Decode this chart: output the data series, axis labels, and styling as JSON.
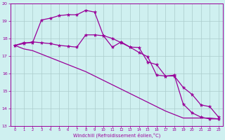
{
  "xlabel": "Windchill (Refroidissement éolien,°C)",
  "bg_color": "#cff0f0",
  "grid_color": "#aacccc",
  "line_color": "#990099",
  "xlim_min": 0,
  "xlim_max": 23,
  "ylim_min": 13,
  "ylim_max": 20,
  "xticks": [
    0,
    1,
    2,
    3,
    4,
    5,
    6,
    7,
    8,
    9,
    10,
    11,
    12,
    13,
    14,
    15,
    16,
    17,
    18,
    19,
    20,
    21,
    22,
    23
  ],
  "yticks": [
    13,
    14,
    15,
    16,
    17,
    18,
    19,
    20
  ],
  "s1_x": [
    0,
    1,
    2,
    3,
    4,
    5,
    6,
    7,
    8,
    9,
    10,
    11,
    12,
    13,
    14,
    15,
    16,
    17,
    18,
    19,
    20,
    21,
    22,
    23
  ],
  "s1_y": [
    17.6,
    17.75,
    17.75,
    19.05,
    19.15,
    19.3,
    19.35,
    19.35,
    19.6,
    19.5,
    18.15,
    17.5,
    17.8,
    17.5,
    17.48,
    16.65,
    16.5,
    15.85,
    15.9,
    14.25,
    13.75,
    13.5,
    13.4,
    13.4
  ],
  "s2_x": [
    0,
    1,
    2,
    3,
    4,
    5,
    6,
    7,
    8,
    9,
    10,
    11,
    12,
    13,
    14,
    15,
    16,
    17,
    18,
    19,
    20,
    21,
    22,
    23
  ],
  "s2_y": [
    17.6,
    17.7,
    17.8,
    17.75,
    17.7,
    17.6,
    17.55,
    17.5,
    18.2,
    18.2,
    18.15,
    18.0,
    17.75,
    17.5,
    17.2,
    16.95,
    15.9,
    15.85,
    15.85,
    15.2,
    14.8,
    14.2,
    14.1,
    13.5
  ],
  "s3_x": [
    0,
    1,
    2,
    3,
    4,
    5,
    6,
    7,
    8,
    9,
    10,
    11,
    12,
    13,
    14,
    15,
    16,
    17,
    18,
    19,
    20,
    21,
    22,
    23
  ],
  "s3_y": [
    17.6,
    17.4,
    17.3,
    17.1,
    16.9,
    16.7,
    16.5,
    16.3,
    16.1,
    15.85,
    15.6,
    15.35,
    15.1,
    14.85,
    14.6,
    14.35,
    14.1,
    13.85,
    13.65,
    13.45,
    13.45,
    13.45,
    13.45,
    13.4
  ]
}
